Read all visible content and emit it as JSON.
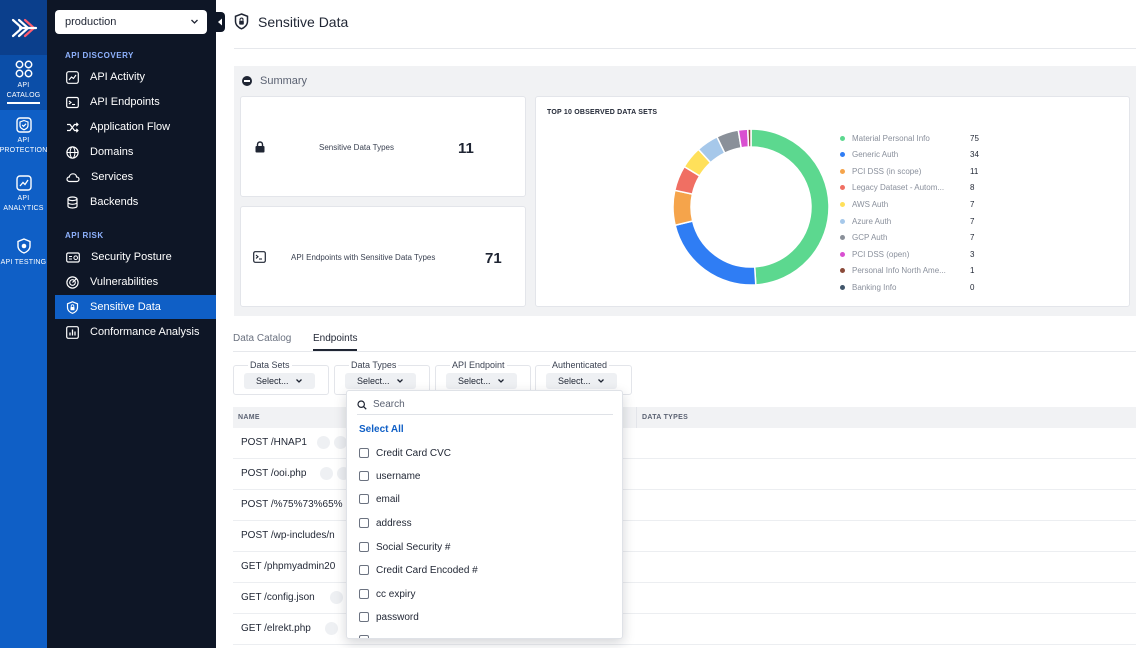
{
  "rail": {
    "items": [
      {
        "icon": "api-catalog-icon",
        "lines": [
          "API",
          "CATALOG"
        ],
        "active": true
      },
      {
        "icon": "api-protection-icon",
        "lines": [
          "API",
          "PROTECTION"
        ],
        "active": false
      },
      {
        "icon": "api-analytics-icon",
        "lines": [
          "API",
          "ANALYTICS"
        ],
        "active": false
      },
      {
        "icon": "api-testing-icon",
        "lines": [
          "API TESTING"
        ],
        "active": false
      }
    ]
  },
  "sidebar": {
    "environment": "production",
    "sections": [
      {
        "title": "API DISCOVERY",
        "items": [
          "API Activity",
          "API Endpoints",
          "Application Flow",
          "Domains",
          "Services",
          "Backends"
        ]
      },
      {
        "title": "API RISK",
        "items": [
          "Security Posture",
          "Vulnerabilities",
          "Sensitive Data",
          "Conformance Analysis"
        ]
      }
    ],
    "active_item": "Sensitive Data"
  },
  "page": {
    "title": "Sensitive Data"
  },
  "summary": {
    "toggle_label": "Summary",
    "kpis": [
      {
        "label": "Sensitive Data Types",
        "value": "11"
      },
      {
        "label": "API Endpoints with Sensitive Data Types",
        "value": "71"
      }
    ]
  },
  "chart_data": {
    "type": "pie",
    "variant": "donut",
    "title": "TOP 10 OBSERVED DATA SETS",
    "legend_position": "right",
    "series": [
      {
        "name": "Material Personal Info",
        "value": 75,
        "color": "#5cd88f"
      },
      {
        "name": "Generic Auth",
        "value": 34,
        "color": "#2f7df4"
      },
      {
        "name": "PCI DSS (in scope)",
        "value": 11,
        "color": "#f5a44b"
      },
      {
        "name": "Legacy Dataset - Autom...",
        "value": 8,
        "color": "#f06f63"
      },
      {
        "name": "AWS Auth",
        "value": 7,
        "color": "#ffe05a"
      },
      {
        "name": "Azure Auth",
        "value": 7,
        "color": "#a6c8ea"
      },
      {
        "name": "GCP Auth",
        "value": 7,
        "color": "#8a9099"
      },
      {
        "name": "PCI DSS (open)",
        "value": 3,
        "color": "#d94fd1"
      },
      {
        "name": "Personal Info North Ame...",
        "value": 1,
        "color": "#8b4a3a"
      },
      {
        "name": "Banking Info",
        "value": 0,
        "color": "#41566b"
      }
    ]
  },
  "tabs": [
    {
      "label": "Data Catalog",
      "active": false
    },
    {
      "label": "Endpoints",
      "active": true
    }
  ],
  "filters": [
    {
      "label": "Data Sets",
      "value": "Select..."
    },
    {
      "label": "Data Types",
      "value": "Select..."
    },
    {
      "label": "API Endpoint",
      "value": "Select..."
    },
    {
      "label": "Authenticated",
      "value": "Select..."
    }
  ],
  "table": {
    "columns": [
      "NAME",
      "DATA TYPES"
    ],
    "rows": [
      "POST /HNAP1",
      "POST /ooi.php",
      "POST /%75%73%65%",
      "POST /wp-includes/n",
      "GET /phpmyadmin20",
      "GET /config.json",
      "GET /elrekt.php"
    ]
  },
  "dropdown": {
    "search_placeholder": "Search",
    "select_all": "Select All",
    "options": [
      "Credit Card CVC",
      "username",
      "email",
      "address",
      "Social Security #",
      "Credit Card Encoded #",
      "cc expiry",
      "password"
    ]
  }
}
